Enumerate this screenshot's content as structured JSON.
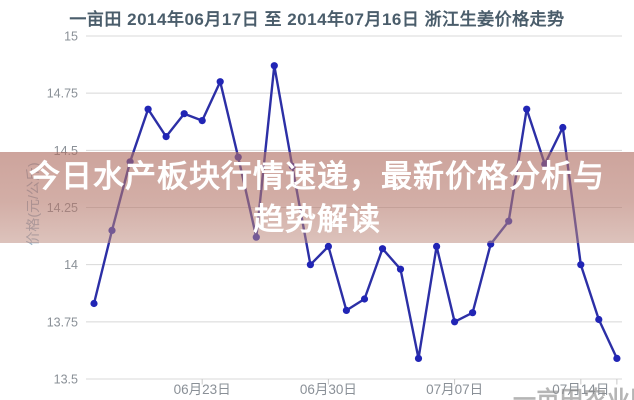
{
  "page": {
    "title": "一亩田 2014年06月17日 至 2014年07月16日 浙江生姜价格走势",
    "overlay": {
      "line1": "今日水产板块行情速递，最新价格分析与",
      "line2": "趋势解读"
    },
    "watermark": "一亩田农业网"
  },
  "chart_data": {
    "type": "line",
    "title": "一亩田 2014年06月17日 至 2014年07月16日 浙江生姜价格走势",
    "xlabel": "",
    "ylabel": "价格(元/公斤)",
    "ylim": [
      13.5,
      15
    ],
    "yticks": [
      15,
      14.75,
      14.5,
      14.25,
      14,
      13.75,
      13.5
    ],
    "grid": true,
    "legend_position": "none",
    "x": [
      "06月17日",
      "06月18日",
      "06月19日",
      "06月20日",
      "06月21日",
      "06月22日",
      "06月23日",
      "06月24日",
      "06月25日",
      "06月26日",
      "06月27日",
      "06月28日",
      "06月29日",
      "06月30日",
      "07月01日",
      "07月02日",
      "07月03日",
      "07月04日",
      "07月05日",
      "07月06日",
      "07月07日",
      "07月08日",
      "07月09日",
      "07月10日",
      "07月11日",
      "07月12日",
      "07月13日",
      "07月14日",
      "07月15日",
      "07月16日"
    ],
    "values": [
      13.83,
      14.15,
      14.45,
      14.68,
      14.56,
      14.66,
      14.63,
      14.8,
      14.47,
      14.12,
      14.87,
      14.43,
      14.0,
      14.08,
      13.8,
      13.85,
      14.07,
      13.98,
      13.59,
      14.08,
      13.75,
      13.79,
      14.09,
      14.19,
      14.68,
      14.44,
      14.6,
      14.0,
      13.76,
      13.59
    ],
    "x_ticks": [
      {
        "index": 6,
        "label": "06月23日"
      },
      {
        "index": 13,
        "label": "06月30日"
      },
      {
        "index": 20,
        "label": "07月07日"
      },
      {
        "index": 27,
        "label": "07月14日"
      },
      {
        "index": 29,
        "label": ""
      }
    ],
    "colors": {
      "line": "#2c2fa6",
      "dot": "#2125b5",
      "grid": "#d8d8d8",
      "tick_text": "#8a9097",
      "ylabel_text": "#9db5c8"
    }
  }
}
